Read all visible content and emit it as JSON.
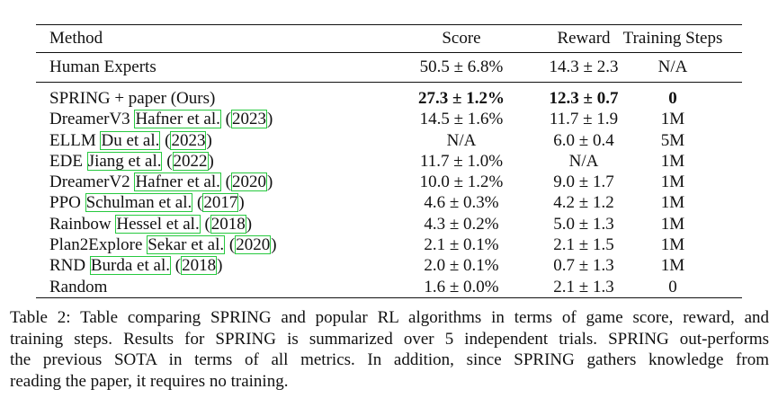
{
  "table": {
    "headers": {
      "method": "Method",
      "score": "Score",
      "reward": "Reward",
      "steps": "Training Steps"
    },
    "human_row": {
      "method": "Human Experts",
      "score": "50.5 ± 6.8%",
      "reward": "14.3 ± 2.3",
      "steps": "N/A"
    },
    "rows": [
      {
        "method": "SPRING + paper (Ours)",
        "cite_name": "",
        "cite_year": "",
        "score": "27.3 ± 1.2%",
        "reward": "12.3 ± 0.7",
        "steps": "0"
      },
      {
        "method": "DreamerV3",
        "cite_name": "Hafner et al.",
        "cite_year": "2023",
        "score": "14.5 ± 1.6%",
        "reward": "11.7 ± 1.9",
        "steps": "1M"
      },
      {
        "method": "ELLM",
        "cite_name": "Du et al.",
        "cite_year": "2023",
        "score": "N/A",
        "reward": "6.0 ± 0.4",
        "steps": "5M"
      },
      {
        "method": "EDE",
        "cite_name": "Jiang et al.",
        "cite_year": "2022",
        "score": "11.7 ± 1.0%",
        "reward": "N/A",
        "steps": "1M"
      },
      {
        "method": "DreamerV2",
        "cite_name": "Hafner et al.",
        "cite_year": "2020",
        "score": "10.0 ± 1.2%",
        "reward": "9.0 ± 1.7",
        "steps": "1M"
      },
      {
        "method": "PPO",
        "cite_name": "Schulman et al.",
        "cite_year": "2017",
        "score": "4.6 ± 0.3%",
        "reward": "4.2 ± 1.2",
        "steps": "1M"
      },
      {
        "method": "Rainbow",
        "cite_name": "Hessel et al.",
        "cite_year": "2018",
        "score": "4.3 ± 0.2%",
        "reward": "5.0 ± 1.3",
        "steps": "1M"
      },
      {
        "method": "Plan2Explore",
        "cite_name": "Sekar et al.",
        "cite_year": "2020",
        "score": "2.1 ± 0.1%",
        "reward": "2.1 ± 1.5",
        "steps": "1M"
      },
      {
        "method": "RND",
        "cite_name": "Burda et al.",
        "cite_year": "2018",
        "score": "2.0 ± 0.1%",
        "reward": "0.7 ± 1.3",
        "steps": "1M"
      },
      {
        "method": "Random",
        "cite_name": "",
        "cite_year": "",
        "score": "1.6 ± 0.0%",
        "reward": "2.1 ± 1.3",
        "steps": "0"
      }
    ]
  },
  "caption": {
    "lines": [
      "Table 2:  Table comparing SPRING and popular RL algorithms in terms of game score, reward, and",
      "training steps. Results for SPRING is summarized over 5 independent trials. SPRING out-performs",
      "the previous SOTA in terms of all metrics.  In addition, since SPRING gathers knowledge from",
      "reading the paper, it requires no training."
    ]
  }
}
